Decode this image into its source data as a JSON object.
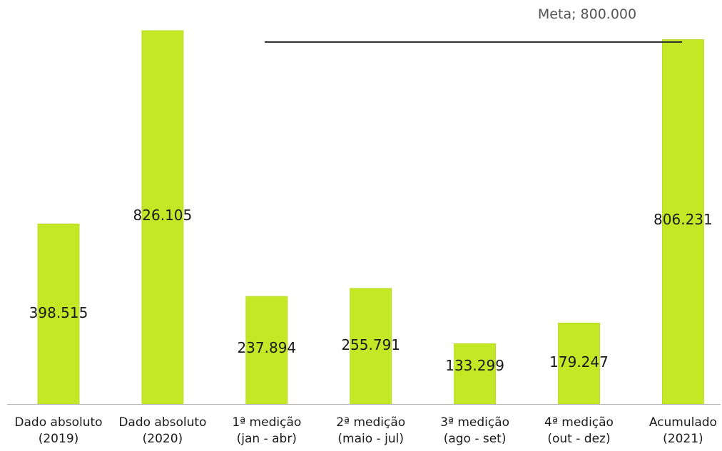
{
  "chart_data": {
    "type": "bar",
    "categories": [
      [
        "Dado absoluto",
        "(2019)"
      ],
      [
        "Dado absoluto",
        "(2020)"
      ],
      [
        "1ª medição",
        "(jan - abr)"
      ],
      [
        "2ª medição",
        "(maio - jul)"
      ],
      [
        "3ª medição",
        "(ago - set)"
      ],
      [
        "4ª medição",
        "(out - dez)"
      ],
      [
        "Acumulado",
        "(2021)"
      ]
    ],
    "values": [
      398515,
      826105,
      237894,
      255791,
      133299,
      179247,
      806231
    ],
    "value_labels": [
      "398.515",
      "826.105",
      "237.894",
      "255.791",
      "133.299",
      "179.247",
      "806.231"
    ],
    "target": {
      "label": "Meta; 800.000",
      "value": 800000
    },
    "ylim": [
      0,
      826105
    ],
    "grid": false,
    "legend": "none",
    "colors": {
      "bar": "#c5e826",
      "bar_edge": "#b3d61a",
      "target_line": "#333333",
      "text": "#1a1a1a",
      "target_text": "#555555",
      "axis": "#b0b0b0"
    }
  }
}
